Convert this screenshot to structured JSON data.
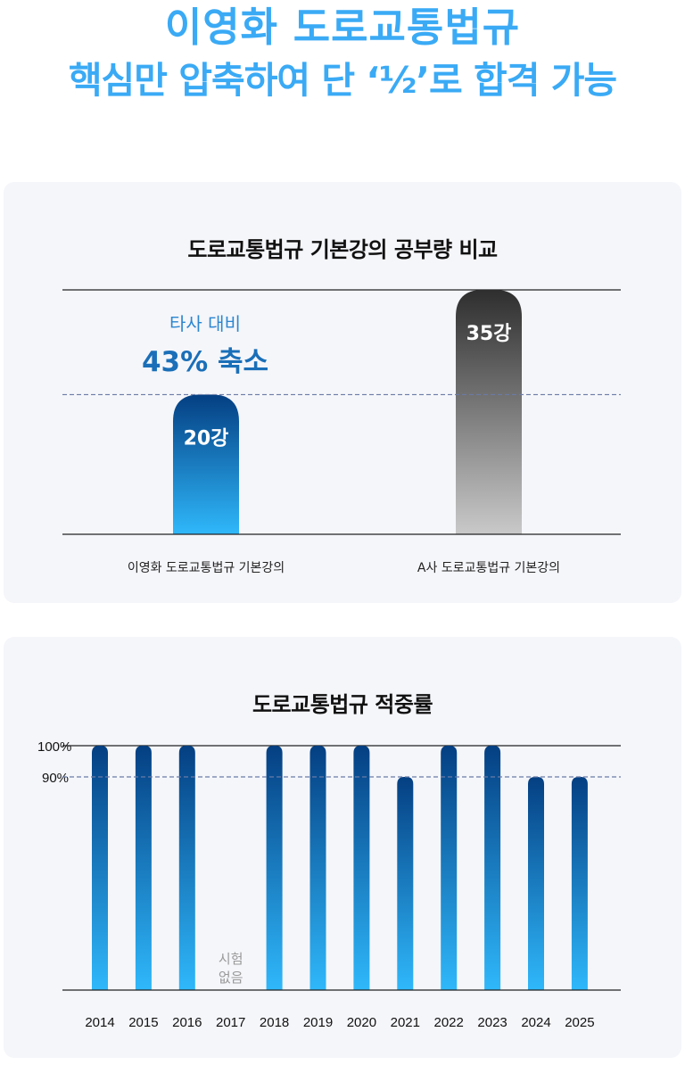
{
  "headline": {
    "line1": "이영화 도로교통법규",
    "line2": "핵심만 압축하여 단 ‘½’로 합격 가능"
  },
  "colors": {
    "headline": "#3aaaf5",
    "bar_top": "#043f82",
    "bar_bottom": "#2fb8fb",
    "competitor_top": "#2e2e2e",
    "competitor_bottom": "#c9c9c9",
    "reference_line": "#6a7ba6"
  },
  "chart_data": [
    {
      "type": "bar",
      "title": "도로교통법규 기본강의 공부량 비교",
      "categories": [
        "이영화 도로교통법규 기본강의",
        "A사 도로교통법규 기본강의"
      ],
      "values": [
        20,
        35
      ],
      "value_labels": [
        "20강",
        "35강"
      ],
      "ylim": [
        0,
        35
      ],
      "reference_line": 20,
      "annotation": {
        "sub": "타사 대비",
        "main": "43% 축소"
      },
      "grid": false,
      "legend": "none"
    },
    {
      "type": "bar",
      "title": "도로교통법규 적중률",
      "categories": [
        "2014",
        "2015",
        "2016",
        "2017",
        "2018",
        "2019",
        "2020",
        "2021",
        "2022",
        "2023",
        "2024",
        "2025"
      ],
      "values": [
        100,
        100,
        100,
        null,
        100,
        100,
        100,
        90,
        100,
        100,
        90,
        90
      ],
      "ylim": [
        70,
        100
      ],
      "yticks": [
        "100%",
        "90%"
      ],
      "reference_line": 90,
      "no_data_note": {
        "category": "2017",
        "line1": "시험",
        "line2": "없음"
      },
      "grid": false,
      "legend": "none"
    }
  ]
}
